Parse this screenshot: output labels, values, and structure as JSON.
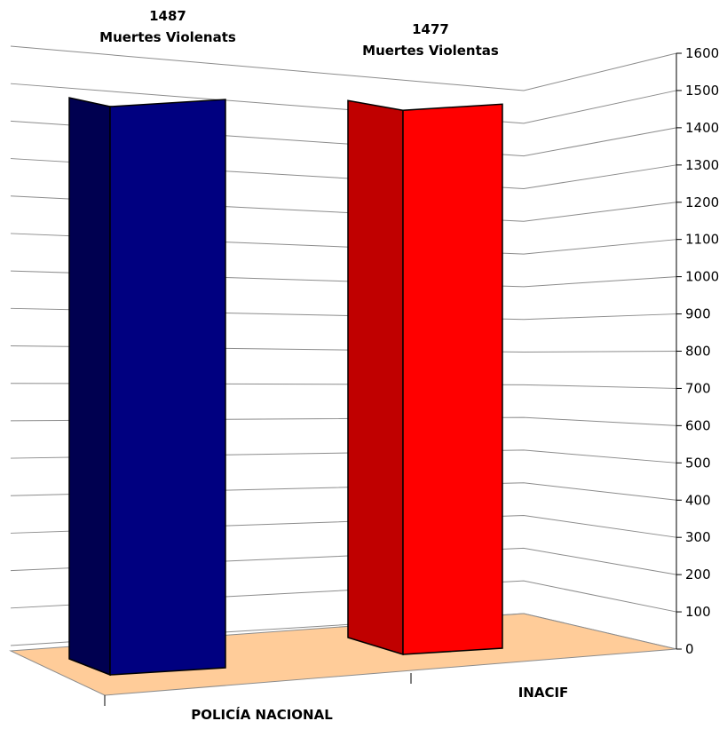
{
  "chart_data": {
    "type": "bar",
    "categories": [
      "POLICÍA NACIONAL",
      "INACIF"
    ],
    "series": [
      {
        "values": [
          1487,
          1477
        ],
        "colors": [
          "#000080",
          "#ff0000"
        ]
      }
    ],
    "data_labels": [
      {
        "value": "1487",
        "text": "Muertes Violenats"
      },
      {
        "value": "1477",
        "text": "Muertes Violentas"
      }
    ],
    "ylim": [
      0,
      1600
    ],
    "y_ticks": [
      "0",
      "100",
      "200",
      "300",
      "400",
      "500",
      "600",
      "700",
      "800",
      "900",
      "1000",
      "1100",
      "1200",
      "1300",
      "1400",
      "1500",
      "1600"
    ],
    "grid": true,
    "three_d": true,
    "floor_color": "#ffcc99",
    "title": "",
    "xlabel": "",
    "ylabel": ""
  }
}
